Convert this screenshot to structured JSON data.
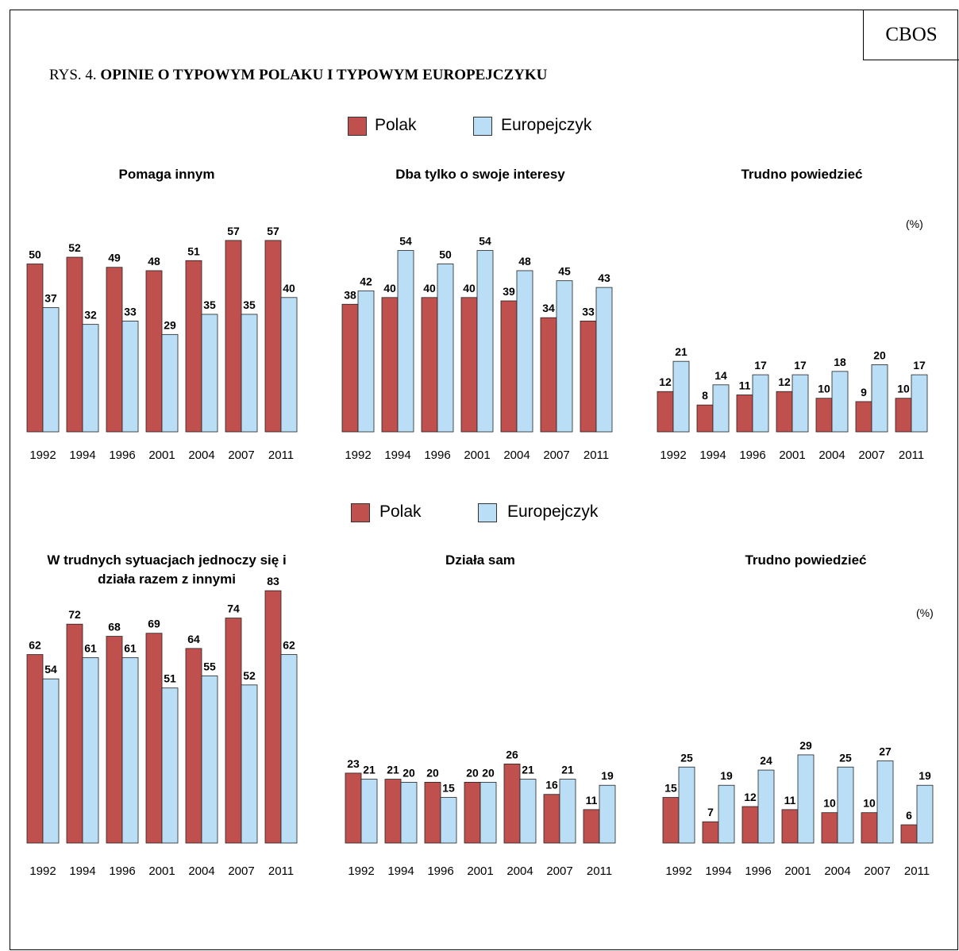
{
  "brand": "CBOS",
  "figure_prefix": "RYS. 4.",
  "figure_title": "OPINIE O TYPOWYM POLAKU I TYPOWYM EUROPEJCZYKU",
  "legend": {
    "polak": "Polak",
    "europejczyk": "Europejczyk"
  },
  "unit": "(%)",
  "colors": {
    "polak": "#c0504d",
    "europejczyk": "#b9def5",
    "outline": "#222222"
  },
  "chart_data": [
    {
      "type": "bar",
      "title": "Pomaga innym",
      "categories": [
        "1992",
        "1994",
        "1996",
        "2001",
        "2004",
        "2007",
        "2011"
      ],
      "series": [
        {
          "name": "Polak",
          "values": [
            50,
            52,
            49,
            48,
            51,
            57,
            57
          ]
        },
        {
          "name": "Europejczyk",
          "values": [
            37,
            32,
            33,
            29,
            35,
            35,
            40
          ]
        }
      ]
    },
    {
      "type": "bar",
      "title": "Dba tylko o swoje interesy",
      "categories": [
        "1992",
        "1994",
        "1996",
        "2001",
        "2004",
        "2007",
        "2011"
      ],
      "series": [
        {
          "name": "Polak",
          "values": [
            38,
            40,
            40,
            40,
            39,
            34,
            33
          ]
        },
        {
          "name": "Europejczyk",
          "values": [
            42,
            54,
            50,
            54,
            48,
            45,
            43
          ]
        }
      ]
    },
    {
      "type": "bar",
      "title": "Trudno powiedzieć",
      "categories": [
        "1992",
        "1994",
        "1996",
        "2001",
        "2004",
        "2007",
        "2011"
      ],
      "series": [
        {
          "name": "Polak",
          "values": [
            12,
            8,
            11,
            12,
            10,
            9,
            10
          ]
        },
        {
          "name": "Europejczyk",
          "values": [
            21,
            14,
            17,
            17,
            18,
            20,
            17
          ]
        }
      ]
    },
    {
      "type": "bar",
      "title": "W trudnych sytuacjach jednoczy się i działa razem z innymi",
      "categories": [
        "1992",
        "1994",
        "1996",
        "2001",
        "2004",
        "2007",
        "2011"
      ],
      "series": [
        {
          "name": "Polak",
          "values": [
            62,
            72,
            68,
            69,
            64,
            74,
            83
          ]
        },
        {
          "name": "Europejczyk",
          "values": [
            54,
            61,
            61,
            51,
            55,
            52,
            62
          ]
        }
      ]
    },
    {
      "type": "bar",
      "title": "Działa sam",
      "categories": [
        "1992",
        "1994",
        "1996",
        "2001",
        "2004",
        "2007",
        "2011"
      ],
      "series": [
        {
          "name": "Polak",
          "values": [
            23,
            21,
            20,
            20,
            26,
            16,
            11
          ]
        },
        {
          "name": "Europejczyk",
          "values": [
            21,
            20,
            15,
            20,
            21,
            21,
            19
          ]
        }
      ]
    },
    {
      "type": "bar",
      "title": "Trudno powiedzieć",
      "categories": [
        "1992",
        "1994",
        "1996",
        "2001",
        "2004",
        "2007",
        "2011"
      ],
      "series": [
        {
          "name": "Polak",
          "values": [
            15,
            7,
            12,
            11,
            10,
            10,
            6
          ]
        },
        {
          "name": "Europejczyk",
          "values": [
            25,
            19,
            24,
            29,
            25,
            27,
            19
          ]
        }
      ]
    }
  ]
}
